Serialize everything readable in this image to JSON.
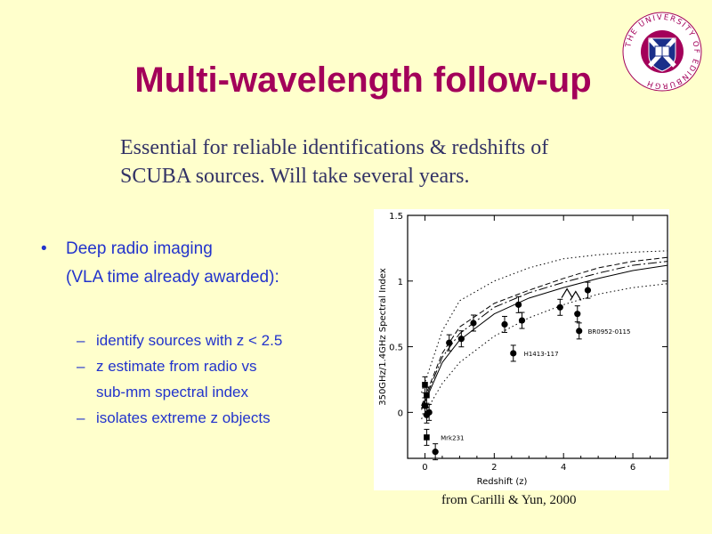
{
  "slide": {
    "title": "Multi-wavelength follow-up",
    "intro_lines": [
      "Essential for reliable identifications & redshifts of",
      "SCUBA sources. Will take several years."
    ],
    "bullet": {
      "line1": "Deep radio imaging",
      "line2": "(VLA time already awarded):",
      "subitems": [
        "identify sources with z < 2.5",
        "z estimate from radio vs",
        "sub-mm spectral index",
        "isolates extreme z objects"
      ]
    },
    "caption": "from Carilli & Yun, 2000",
    "logo_text": "THE UNIVERSITY OF EDINBURGH",
    "colors": {
      "background": "#ffffcc",
      "title": "#a3005a",
      "bullets": "#2233cc",
      "intro": "#333366"
    }
  },
  "chart_data": {
    "type": "scatter",
    "xlabel": "Redshift (z)",
    "ylabel": "350GHz/1.4GHz Spectral Index",
    "xlim": [
      -0.5,
      7
    ],
    "ylim": [
      -0.35,
      1.5
    ],
    "xticks": [
      0,
      2,
      4,
      6
    ],
    "yticks": [
      0,
      0.5,
      1,
      1.5
    ],
    "series": [
      {
        "marker": "circle",
        "points": [
          {
            "x": 0.0,
            "y": 0.05
          },
          {
            "x": 0.05,
            "y": -0.02
          },
          {
            "x": 0.12,
            "y": 0.0
          },
          {
            "x": 0.3,
            "y": -0.3
          },
          {
            "x": 0.7,
            "y": 0.53
          },
          {
            "x": 1.05,
            "y": 0.56
          },
          {
            "x": 1.4,
            "y": 0.68
          },
          {
            "x": 2.3,
            "y": 0.67
          },
          {
            "x": 2.55,
            "y": 0.45
          },
          {
            "x": 2.7,
            "y": 0.82
          },
          {
            "x": 2.8,
            "y": 0.7
          },
          {
            "x": 3.9,
            "y": 0.8
          },
          {
            "x": 4.4,
            "y": 0.75
          },
          {
            "x": 4.45,
            "y": 0.62
          },
          {
            "x": 4.7,
            "y": 0.93
          }
        ]
      },
      {
        "marker": "square",
        "points": [
          {
            "x": 0.0,
            "y": 0.21
          },
          {
            "x": 0.05,
            "y": 0.13
          },
          {
            "x": 0.05,
            "y": -0.19
          }
        ]
      },
      {
        "marker": "triangle",
        "points": [
          {
            "x": 4.1,
            "y": 0.9
          },
          {
            "x": 4.35,
            "y": 0.88
          }
        ]
      }
    ],
    "curves": [
      {
        "style": "dotted-upper",
        "points": [
          [
            -0.1,
            0.15
          ],
          [
            0.5,
            0.62
          ],
          [
            1,
            0.85
          ],
          [
            2,
            1.0
          ],
          [
            3,
            1.1
          ],
          [
            4,
            1.17
          ],
          [
            5,
            1.2
          ],
          [
            6,
            1.22
          ],
          [
            7,
            1.23
          ]
        ]
      },
      {
        "style": "dashed",
        "points": [
          [
            -0.1,
            0.05
          ],
          [
            0.5,
            0.45
          ],
          [
            1,
            0.65
          ],
          [
            2,
            0.83
          ],
          [
            3,
            0.93
          ],
          [
            4,
            1.02
          ],
          [
            5,
            1.1
          ],
          [
            6,
            1.15
          ],
          [
            7,
            1.18
          ]
        ]
      },
      {
        "style": "long-dashed",
        "points": [
          [
            -0.1,
            0.03
          ],
          [
            0.5,
            0.42
          ],
          [
            1,
            0.6
          ],
          [
            2,
            0.8
          ],
          [
            3,
            0.91
          ],
          [
            4,
            0.99
          ],
          [
            5,
            1.06
          ],
          [
            6,
            1.12
          ],
          [
            7,
            1.15
          ]
        ]
      },
      {
        "style": "solid",
        "points": [
          [
            -0.1,
            0.02
          ],
          [
            0.5,
            0.38
          ],
          [
            1,
            0.55
          ],
          [
            2,
            0.75
          ],
          [
            3,
            0.87
          ],
          [
            4,
            0.95
          ],
          [
            5,
            1.02
          ],
          [
            6,
            1.08
          ],
          [
            7,
            1.12
          ]
        ]
      },
      {
        "style": "dotted-lower",
        "points": [
          [
            -0.1,
            -0.05
          ],
          [
            0.5,
            0.22
          ],
          [
            1,
            0.38
          ],
          [
            2,
            0.58
          ],
          [
            3,
            0.72
          ],
          [
            4,
            0.82
          ],
          [
            5,
            0.9
          ],
          [
            6,
            0.95
          ],
          [
            7,
            0.98
          ]
        ]
      }
    ],
    "annotations": [
      {
        "text": "BR0952-0115",
        "x": 4.55,
        "y": 0.62
      },
      {
        "text": "H1413-117",
        "x": 2.7,
        "y": 0.45
      },
      {
        "text": "Mrk231",
        "x": 0.3,
        "y": -0.19
      }
    ]
  }
}
